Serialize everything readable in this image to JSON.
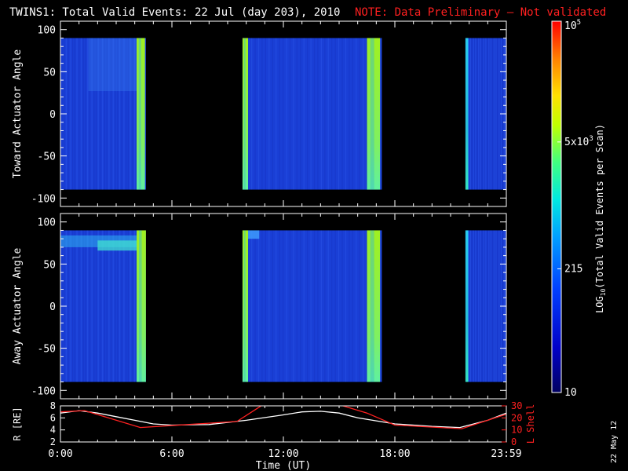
{
  "title": "TWINS1: Total Valid Events: 22 Jul (day 203), 2010",
  "note": "NOTE: Data Preliminary — Not validated",
  "footer_date": "22 May 12",
  "chart_data": [
    {
      "type": "heatmap",
      "panel": "top",
      "ylabel": "Toward Actuator Angle",
      "ylim": [
        -110,
        110
      ],
      "yticks": [
        100,
        50,
        0,
        -50,
        -100
      ],
      "y_range_data": [
        -90,
        90
      ],
      "x_ticks": [
        "0:00",
        "6:00",
        "12:00",
        "18:00",
        "23:59"
      ],
      "data_segments_hours": [
        [
          0.0,
          4.6
        ],
        [
          9.8,
          17.3
        ],
        [
          21.8,
          24.0
        ]
      ],
      "bright_bands_hours": [
        [
          4.1,
          4.55,
          "yellow-green"
        ],
        [
          9.8,
          10.1,
          "yellow-green"
        ],
        [
          16.5,
          17.2,
          "yellow-green"
        ],
        [
          21.8,
          21.95,
          "cyan"
        ]
      ],
      "background_level": "blue (~100 events/scan)",
      "colorbar_scale": "log"
    },
    {
      "type": "heatmap",
      "panel": "middle",
      "ylabel": "Away Actuator Angle",
      "ylim": [
        -110,
        110
      ],
      "yticks": [
        100,
        50,
        0,
        -50,
        -100
      ],
      "y_range_data": [
        -90,
        90
      ],
      "x_ticks": [
        "0:00",
        "6:00",
        "12:00",
        "18:00",
        "23:59"
      ],
      "data_segments_hours": [
        [
          0.0,
          4.6
        ],
        [
          9.8,
          17.3
        ],
        [
          21.8,
          24.0
        ]
      ],
      "bright_bands_hours": [
        [
          4.1,
          4.6,
          "yellow-green"
        ],
        [
          9.8,
          10.1,
          "yellow-green"
        ],
        [
          16.5,
          17.2,
          "yellow-green"
        ],
        [
          21.8,
          21.95,
          "cyan"
        ]
      ],
      "feature": "enhanced band near +70 deg from 0:00 to 4:30",
      "colorbar_scale": "log"
    },
    {
      "type": "line",
      "panel": "bottom",
      "ylabel_left": "R [RE]",
      "ylabel_right": "L Shell",
      "left_ylim": [
        2,
        8
      ],
      "left_yticks": [
        2,
        4,
        6,
        8
      ],
      "right_ylim": [
        0,
        30
      ],
      "right_yticks": [
        0,
        10,
        20,
        30
      ],
      "xlabel": "Time (UT)",
      "x_ticks": [
        "0:00",
        "6:00",
        "12:00",
        "18:00",
        "23:59"
      ],
      "series": [
        {
          "name": "R",
          "color": "#ffffff",
          "axis": "left",
          "x": [
            0,
            1,
            2,
            3,
            4,
            5,
            6,
            8,
            10,
            12,
            13,
            14,
            15,
            16,
            18,
            20,
            21.5,
            23,
            24
          ],
          "y": [
            6.8,
            7.2,
            6.8,
            6.2,
            5.6,
            5.0,
            4.8,
            4.9,
            5.6,
            6.5,
            7.0,
            7.1,
            6.8,
            6.0,
            5.0,
            4.6,
            4.4,
            5.6,
            6.8
          ]
        },
        {
          "name": "L Shell",
          "color": "#ff2020",
          "axis": "right",
          "x": [
            0,
            1.3,
            4.3,
            9.5,
            10.3,
            11.2,
            12.5,
            14.6,
            15.0,
            16.5,
            18.0,
            21.6,
            24.0
          ],
          "y": [
            25,
            26,
            12,
            17,
            25,
            34,
            40,
            35,
            31,
            24,
            14,
            11,
            23
          ]
        }
      ]
    }
  ],
  "colorbar": {
    "label_prefix": "LOG",
    "label_sub": "10",
    "label_suffix": "(Total Valid Events per Scan)",
    "min": 10,
    "max": 100000,
    "ticks": [
      {
        "value": 10,
        "label": "10"
      },
      {
        "value": 215,
        "label": "215"
      },
      {
        "value": 5000,
        "label": "5x10^3"
      },
      {
        "value": 100000,
        "label": "10^5"
      }
    ]
  }
}
